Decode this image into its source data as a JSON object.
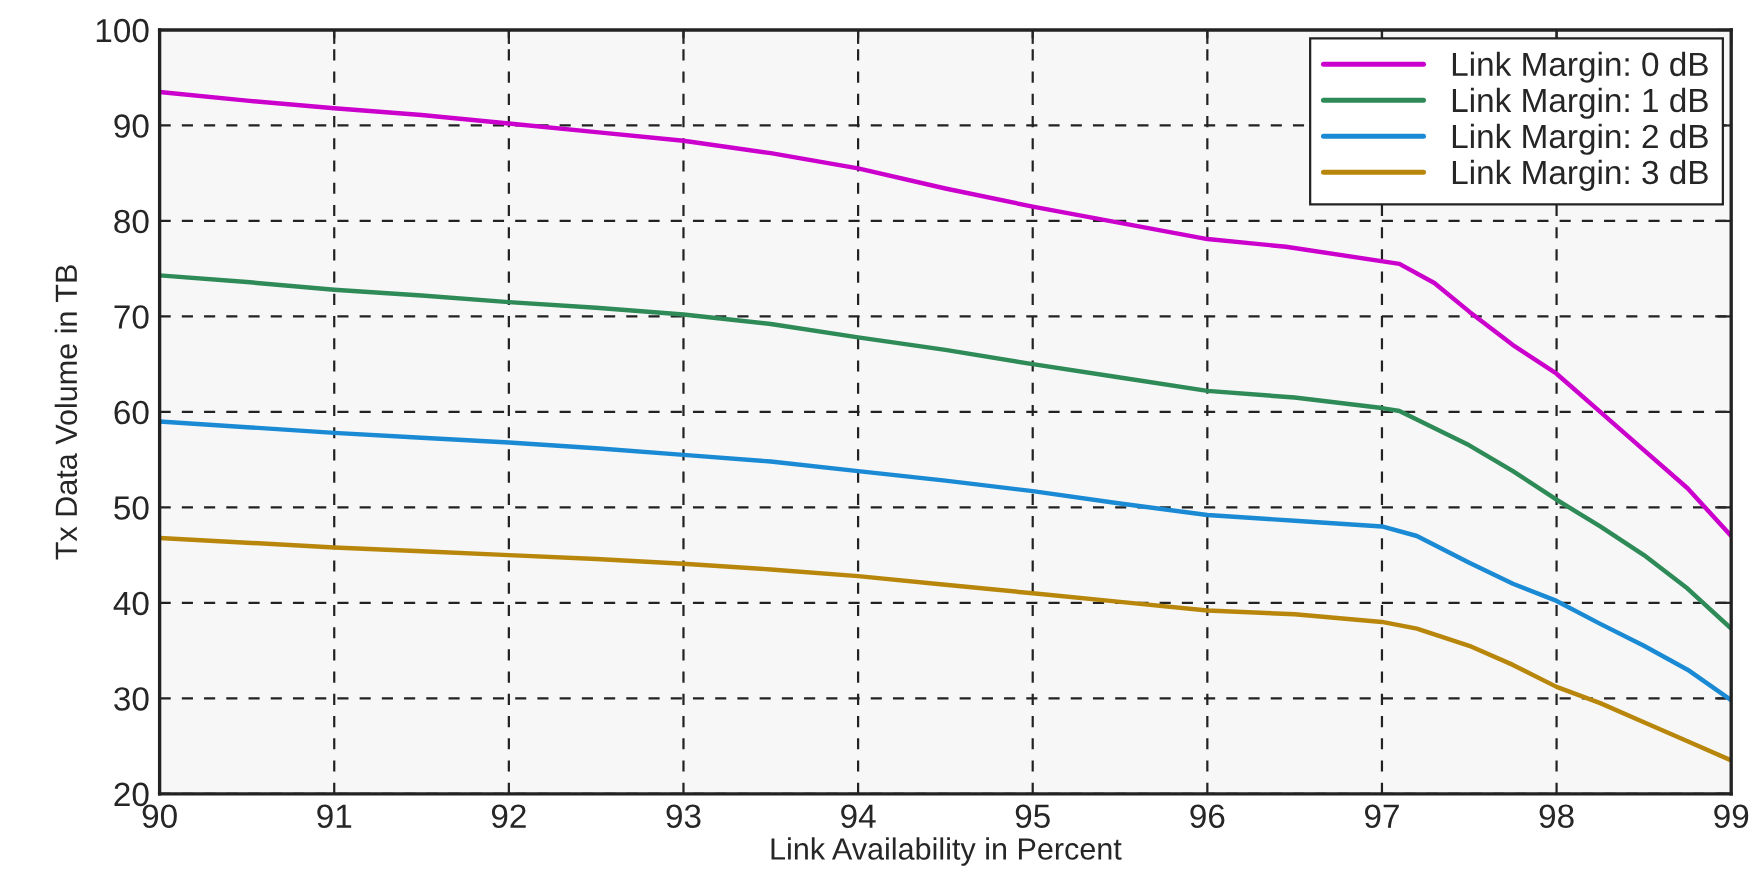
{
  "chart_data": {
    "type": "line",
    "xlabel": "Link Availability in Percent",
    "ylabel": "Tx Data Volume in TB",
    "xlim": [
      90,
      99
    ],
    "xticks": [
      90,
      91,
      92,
      93,
      94,
      95,
      96,
      97,
      98,
      99
    ],
    "ylim": [
      20,
      100
    ],
    "yticks": [
      20,
      30,
      40,
      50,
      60,
      70,
      80,
      90,
      100
    ],
    "grid": true,
    "legend": "top right",
    "line_style": "solid",
    "marker": "none",
    "series": [
      {
        "name": "Link Margin: 0 dB",
        "color": "#cc00cc",
        "x": [
          90,
          90.5,
          91,
          91.5,
          92,
          92.5,
          93,
          93.5,
          94,
          94.5,
          95,
          95.5,
          96,
          96.45,
          97.1,
          97.3,
          97.5,
          97.75,
          98,
          98.25,
          98.5,
          98.75,
          99
        ],
        "values": [
          93.5,
          92.6,
          91.8,
          91.1,
          90.2,
          89.3,
          88.4,
          87.1,
          85.5,
          83.4,
          81.5,
          79.8,
          78.1,
          77.3,
          75.5,
          73.5,
          70.5,
          67,
          64,
          60,
          56,
          52,
          47
        ]
      },
      {
        "name": "Link Margin: 1 dB",
        "color": "#2e8b57",
        "x": [
          90,
          90.5,
          91,
          91.5,
          92,
          92.5,
          93,
          93.5,
          94,
          94.5,
          95,
          95.5,
          96,
          96.5,
          97,
          97.1,
          97.5,
          97.75,
          98,
          98.25,
          98.5,
          98.75,
          99
        ],
        "values": [
          74.3,
          73.6,
          72.8,
          72.2,
          71.5,
          70.9,
          70.2,
          69.2,
          67.8,
          66.5,
          65,
          63.6,
          62.2,
          61.5,
          60.4,
          60.1,
          56.5,
          53.8,
          50.8,
          48,
          45,
          41.5,
          37.3
        ]
      },
      {
        "name": "Link Margin: 2 dB",
        "color": "#1a8ad4",
        "x": [
          90,
          90.5,
          91,
          91.5,
          92,
          92.5,
          93,
          93.5,
          94,
          94.5,
          95,
          95.5,
          96,
          96.5,
          97,
          97.2,
          97.5,
          97.75,
          98,
          98.25,
          98.5,
          98.75,
          99
        ],
        "values": [
          59,
          58.4,
          57.8,
          57.3,
          56.8,
          56.2,
          55.5,
          54.8,
          53.8,
          52.8,
          51.7,
          50.4,
          49.2,
          48.6,
          48,
          47,
          44.2,
          42,
          40.2,
          37.8,
          35.5,
          33,
          29.8
        ]
      },
      {
        "name": "Link Margin: 3 dB",
        "color": "#b8860b",
        "x": [
          90,
          90.5,
          91,
          91.5,
          92,
          92.5,
          93,
          93.5,
          94,
          94.5,
          95,
          95.5,
          96,
          96.5,
          97,
          97.2,
          97.5,
          97.75,
          98,
          98.25,
          98.5,
          98.75,
          99
        ],
        "values": [
          46.8,
          46.3,
          45.8,
          45.4,
          45,
          44.6,
          44.1,
          43.5,
          42.8,
          41.9,
          41,
          40.1,
          39.2,
          38.8,
          38,
          37.3,
          35.5,
          33.5,
          31.2,
          29.5,
          27.5,
          25.5,
          23.5
        ]
      }
    ]
  }
}
